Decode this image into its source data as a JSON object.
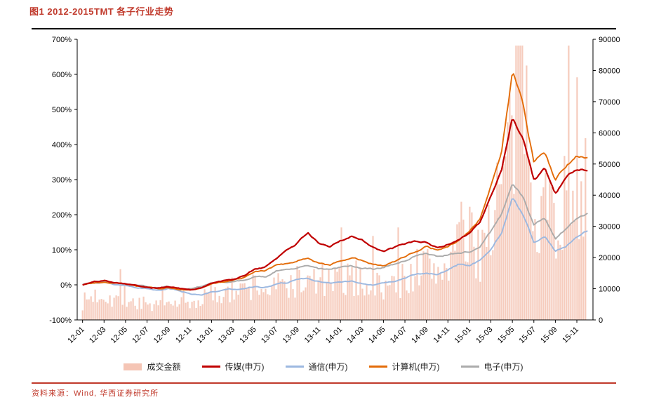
{
  "title": "图1 2012-2015TMT 各子行业走势",
  "source": "资料来源：Wind, 华西证券研究所",
  "colors": {
    "title_red": "#c0392b",
    "rule_black": "#111111",
    "volume_pink": "#f5c5b5",
    "media_red": "#c00000",
    "telecom_blue": "#9cb8e0",
    "computer_orange": "#e36c09",
    "electronics_gray": "#ababab"
  },
  "chart_data": {
    "type": "combo",
    "subtypes": [
      "bar",
      "line"
    ],
    "grid": false,
    "legend_position": "bottom",
    "months": [
      "12-01",
      "12-02",
      "12-03",
      "12-04",
      "12-05",
      "12-06",
      "12-07",
      "12-08",
      "12-09",
      "12-10",
      "12-11",
      "12-12",
      "13-01",
      "13-02",
      "13-03",
      "13-04",
      "13-05",
      "13-06",
      "13-07",
      "13-08",
      "13-09",
      "13-10",
      "13-11",
      "13-12",
      "14-01",
      "14-02",
      "14-03",
      "14-04",
      "14-05",
      "14-06",
      "14-07",
      "14-08",
      "14-09",
      "14-10",
      "14-11",
      "14-12",
      "15-01",
      "15-02",
      "15-03",
      "15-04",
      "15-05",
      "15-06",
      "15-07",
      "15-08",
      "15-09",
      "15-10",
      "15-11",
      "15-12"
    ],
    "x_tick_labels": [
      "12-01",
      "12-03",
      "12-05",
      "12-07",
      "12-09",
      "12-11",
      "13-01",
      "13-03",
      "13-05",
      "13-07",
      "13-09",
      "13-11",
      "14-01",
      "14-03",
      "14-05",
      "14-07",
      "14-09",
      "14-11",
      "15-01",
      "15-03",
      "15-05",
      "15-07",
      "15-09",
      "15-11"
    ],
    "left_axis": {
      "min": -100,
      "max": 700,
      "step": 100,
      "unit": "%",
      "ticks": [
        "700%",
        "600%",
        "500%",
        "400%",
        "300%",
        "200%",
        "100%",
        "0%",
        "-100%"
      ]
    },
    "right_axis": {
      "min": 0,
      "max": 90000,
      "step": 10000,
      "ticks": [
        "90000",
        "80000",
        "70000",
        "60000",
        "50000",
        "40000",
        "30000",
        "20000",
        "10000",
        "0"
      ]
    },
    "series": [
      {
        "name": "成交金额",
        "type": "bar",
        "axis": "right",
        "color": "#f5c5b5",
        "values": [
          6000,
          8000,
          9000,
          7000,
          7500,
          5500,
          5000,
          4500,
          5000,
          5500,
          5000,
          7000,
          9000,
          8000,
          10000,
          9500,
          12000,
          10000,
          11000,
          12000,
          13000,
          12000,
          14000,
          12000,
          13000,
          14000,
          13500,
          12000,
          11000,
          12000,
          14000,
          17000,
          18000,
          16000,
          20000,
          28000,
          26000,
          24000,
          35000,
          45000,
          60000,
          85000,
          45000,
          40000,
          35000,
          40000,
          52000,
          48000
        ]
      },
      {
        "name": "传媒(申万)",
        "type": "line",
        "axis": "left",
        "color": "#c00000",
        "values": [
          0,
          8,
          12,
          8,
          5,
          -2,
          -5,
          -8,
          -5,
          -10,
          -15,
          -8,
          5,
          10,
          15,
          25,
          45,
          50,
          75,
          100,
          120,
          150,
          115,
          105,
          125,
          140,
          130,
          110,
          95,
          105,
          115,
          125,
          120,
          105,
          115,
          130,
          150,
          180,
          250,
          330,
          480,
          420,
          300,
          330,
          260,
          300,
          330,
          325
        ]
      },
      {
        "name": "通信(申万)",
        "type": "line",
        "axis": "left",
        "color": "#9cb8e0",
        "values": [
          0,
          3,
          5,
          0,
          -3,
          -8,
          -10,
          -15,
          -12,
          -18,
          -25,
          -30,
          -20,
          -15,
          -12,
          -10,
          -5,
          -8,
          0,
          5,
          15,
          18,
          10,
          5,
          10,
          12,
          5,
          0,
          5,
          10,
          20,
          30,
          35,
          30,
          45,
          60,
          55,
          70,
          100,
          150,
          250,
          200,
          120,
          140,
          95,
          110,
          140,
          155
        ]
      },
      {
        "name": "计算机(申万)",
        "type": "line",
        "axis": "left",
        "color": "#e36c09",
        "values": [
          0,
          6,
          10,
          5,
          3,
          -3,
          -6,
          -10,
          -8,
          -12,
          -15,
          -8,
          2,
          8,
          12,
          18,
          35,
          40,
          55,
          60,
          70,
          75,
          60,
          55,
          70,
          80,
          70,
          60,
          55,
          65,
          80,
          95,
          110,
          100,
          110,
          125,
          150,
          190,
          280,
          380,
          600,
          520,
          350,
          380,
          300,
          340,
          370,
          365
        ]
      },
      {
        "name": "电子(申万)",
        "type": "line",
        "axis": "left",
        "color": "#ababab",
        "values": [
          0,
          5,
          8,
          5,
          2,
          -2,
          -5,
          -8,
          -5,
          -8,
          -12,
          -5,
          5,
          8,
          10,
          12,
          25,
          22,
          40,
          45,
          50,
          55,
          45,
          42,
          50,
          55,
          48,
          45,
          50,
          60,
          70,
          85,
          90,
          80,
          85,
          90,
          95,
          110,
          150,
          200,
          290,
          250,
          170,
          190,
          130,
          160,
          190,
          205
        ]
      }
    ]
  }
}
